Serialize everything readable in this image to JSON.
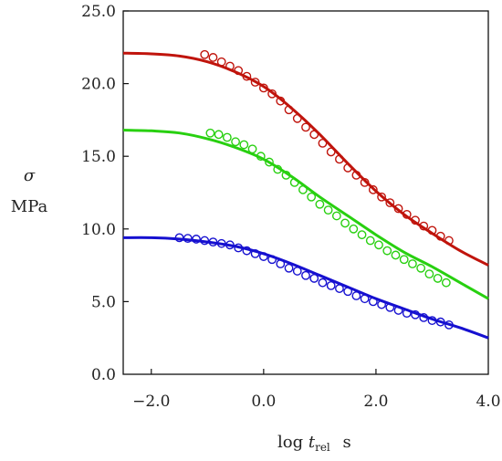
{
  "chart_data": {
    "type": "line",
    "title": "",
    "ylabel_symbol": "σ",
    "ylabel_unit": "MPa",
    "xlabel_prefix": "log",
    "xlabel_var": "t",
    "xlabel_sub": "rel",
    "xlabel_unit": "s",
    "xlim": [
      -2.5,
      4.0
    ],
    "ylim": [
      0,
      25
    ],
    "x_ticks": [
      -2.0,
      0.0,
      2.0,
      4.0
    ],
    "x_tick_labels": [
      "−2.0",
      "0.0",
      "2.0",
      "4.0"
    ],
    "y_ticks": [
      0,
      5,
      10,
      15,
      20,
      25
    ],
    "y_tick_labels": [
      "0.0",
      "5.0",
      "10.0",
      "15.0",
      "20.0",
      "25.0"
    ],
    "grid": false,
    "series": [
      {
        "color": "#c0140c",
        "fit": {
          "x": [
            -2.5,
            -2.0,
            -1.5,
            -1.0,
            -0.5,
            0.0,
            0.5,
            1.0,
            1.5,
            2.0,
            2.5,
            3.0,
            3.5,
            4.0
          ],
          "y": [
            22.1,
            22.05,
            21.9,
            21.5,
            20.8,
            19.8,
            18.3,
            16.5,
            14.5,
            12.6,
            11.0,
            9.7,
            8.5,
            7.5
          ]
        },
        "points": {
          "x": [
            -1.05,
            -0.9,
            -0.75,
            -0.6,
            -0.45,
            -0.3,
            -0.15,
            0.0,
            0.15,
            0.3,
            0.45,
            0.6,
            0.75,
            0.9,
            1.05,
            1.2,
            1.35,
            1.5,
            1.65,
            1.8,
            1.95,
            2.1,
            2.25,
            2.4,
            2.55,
            2.7,
            2.85,
            3.0,
            3.15,
            3.3
          ],
          "y": [
            22.0,
            21.8,
            21.5,
            21.2,
            20.9,
            20.5,
            20.1,
            19.7,
            19.3,
            18.8,
            18.2,
            17.6,
            17.0,
            16.5,
            15.9,
            15.3,
            14.8,
            14.2,
            13.7,
            13.2,
            12.7,
            12.2,
            11.8,
            11.4,
            11.0,
            10.6,
            10.2,
            9.9,
            9.5,
            9.2
          ]
        }
      },
      {
        "color": "#28d010",
        "fit": {
          "x": [
            -2.5,
            -2.0,
            -1.5,
            -1.0,
            -0.5,
            0.0,
            0.5,
            1.0,
            1.5,
            2.0,
            2.5,
            3.0,
            3.5,
            4.0
          ],
          "y": [
            16.8,
            16.75,
            16.6,
            16.2,
            15.6,
            14.8,
            13.6,
            12.2,
            10.9,
            9.6,
            8.4,
            7.4,
            6.3,
            5.2
          ]
        },
        "points": {
          "x": [
            -0.95,
            -0.8,
            -0.65,
            -0.5,
            -0.35,
            -0.2,
            -0.05,
            0.1,
            0.25,
            0.4,
            0.55,
            0.7,
            0.85,
            1.0,
            1.15,
            1.3,
            1.45,
            1.6,
            1.75,
            1.9,
            2.05,
            2.2,
            2.35,
            2.5,
            2.65,
            2.8,
            2.95,
            3.1,
            3.25
          ],
          "y": [
            16.6,
            16.5,
            16.3,
            16.0,
            15.8,
            15.5,
            15.0,
            14.6,
            14.1,
            13.7,
            13.2,
            12.7,
            12.2,
            11.7,
            11.3,
            10.9,
            10.4,
            10.0,
            9.6,
            9.2,
            8.9,
            8.5,
            8.2,
            7.9,
            7.6,
            7.3,
            6.9,
            6.6,
            6.3
          ]
        }
      },
      {
        "color": "#1610d0",
        "fit": {
          "x": [
            -2.5,
            -2.0,
            -1.5,
            -1.0,
            -0.5,
            0.0,
            0.5,
            1.0,
            1.5,
            2.0,
            2.5,
            3.0,
            3.5,
            4.0
          ],
          "y": [
            9.4,
            9.4,
            9.3,
            9.1,
            8.8,
            8.3,
            7.6,
            6.8,
            6.0,
            5.2,
            4.5,
            3.8,
            3.2,
            2.5
          ]
        },
        "points": {
          "x": [
            -1.5,
            -1.35,
            -1.2,
            -1.05,
            -0.9,
            -0.75,
            -0.6,
            -0.45,
            -0.3,
            -0.15,
            0.0,
            0.15,
            0.3,
            0.45,
            0.6,
            0.75,
            0.9,
            1.05,
            1.2,
            1.35,
            1.5,
            1.65,
            1.8,
            1.95,
            2.1,
            2.25,
            2.4,
            2.55,
            2.7,
            2.85,
            3.0,
            3.15,
            3.3
          ],
          "y": [
            9.4,
            9.35,
            9.3,
            9.2,
            9.1,
            9.0,
            8.9,
            8.7,
            8.5,
            8.3,
            8.1,
            7.9,
            7.6,
            7.3,
            7.1,
            6.8,
            6.6,
            6.3,
            6.1,
            5.9,
            5.7,
            5.4,
            5.2,
            5.0,
            4.8,
            4.6,
            4.4,
            4.2,
            4.1,
            3.9,
            3.7,
            3.6,
            3.4
          ]
        }
      }
    ]
  }
}
